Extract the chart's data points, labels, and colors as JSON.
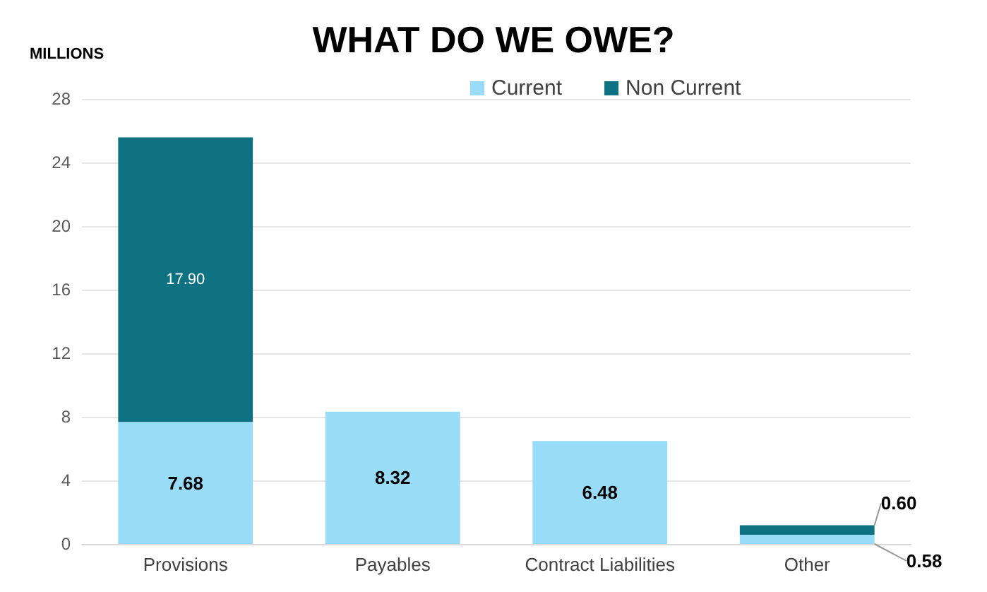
{
  "chart_data": {
    "type": "bar",
    "title": "WHAT DO WE OWE?",
    "ylabel": "MILLIONS",
    "categories": [
      "Provisions",
      "Payables",
      "Contract Liabilities",
      "Other"
    ],
    "stacked": true,
    "series": [
      {
        "name": "Current",
        "color": "#99dcf7",
        "values": [
          7.68,
          8.32,
          6.48,
          0.58
        ],
        "value_labels": [
          "7.68",
          "8.32",
          "6.48",
          "0.58"
        ]
      },
      {
        "name": "Non Current",
        "color": "#0e7283",
        "values": [
          17.9,
          null,
          null,
          0.6
        ],
        "value_labels": [
          "17.90",
          null,
          null,
          "0.60"
        ]
      }
    ],
    "ylim": [
      0,
      28
    ],
    "yticks": [
      0,
      4,
      8,
      12,
      16,
      20,
      24,
      28
    ],
    "grid": "y",
    "legend": "top right"
  }
}
